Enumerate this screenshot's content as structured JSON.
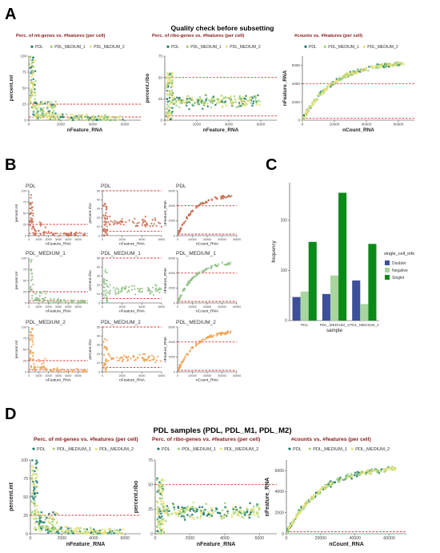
{
  "panels": {
    "A": {
      "letter": "A",
      "title": "Quality check before subsetting",
      "legend": [
        "PDL",
        "PDL_MEDIUM_1",
        "PDL_MEDIUM_2"
      ],
      "colors": {
        "PDL": "#1b7a6b",
        "PDL_MEDIUM_1": "#9fd27a",
        "PDL_MEDIUM_2": "#e8e37a"
      }
    },
    "B": {
      "letter": "B",
      "rows": [
        "PDL",
        "PDL_MEDIUM_1",
        "PDL_MEDIUM_2"
      ]
    },
    "C": {
      "letter": "C"
    },
    "D": {
      "letter": "D",
      "title": "PDL samples (PDL, PDL_M1, PDL_M2)",
      "legend": [
        "PDL",
        "PDL_MEDIUM_1",
        "PDL_MEDIUM_2"
      ]
    }
  },
  "chart_data": [
    {
      "id": "A1",
      "type": "scatter",
      "title": "Perc. of mt-genes vs. #features (per cell)",
      "xlabel": "nFeature_RNA",
      "ylabel": "percent.mt",
      "xlim": [
        0,
        7000
      ],
      "ylim": [
        0,
        100
      ],
      "xticks": [
        0,
        2000,
        4000,
        6000
      ],
      "yticks": [
        0,
        25,
        50,
        75,
        100
      ],
      "hlines": [
        5,
        25
      ]
    },
    {
      "id": "A2",
      "type": "scatter",
      "title": "Perc. of ribo-genes vs. #features (per cell)",
      "xlabel": "nFeature_RNA",
      "ylabel": "percent.ribo",
      "xlim": [
        0,
        7000
      ],
      "ylim": [
        0,
        75
      ],
      "xticks": [
        0,
        2000,
        4000,
        6000
      ],
      "yticks": [
        0,
        25,
        50,
        75
      ],
      "hlines": [
        5,
        50
      ]
    },
    {
      "id": "A3",
      "type": "scatter",
      "title": "#counts vs. #features (per cell)",
      "xlabel": "nCount_RNA",
      "ylabel": "nFeature_RNA",
      "xlim": [
        0,
        70000
      ],
      "ylim": [
        0,
        7000
      ],
      "xticks": [
        0,
        20000,
        40000,
        60000
      ],
      "yticks": [
        0,
        2000,
        4000,
        6000
      ],
      "hlines": [
        200,
        4000
      ]
    },
    {
      "id": "C",
      "type": "bar",
      "categories": [
        "PDL",
        "PDL_MEDIUM_1",
        "PDL_MEDIUM_2"
      ],
      "series": [
        {
          "name": "Doublet",
          "color": "#3d4f9a",
          "values": [
            47,
            53,
            80
          ]
        },
        {
          "name": "Negative",
          "color": "#a8d5a0",
          "values": [
            58,
            90,
            33
          ]
        },
        {
          "name": "Singlet",
          "color": "#0b8a1a",
          "values": [
            157,
            255,
            153
          ]
        }
      ],
      "xlabel": "sample",
      "ylabel": "frequency",
      "ylim": [
        0,
        275
      ],
      "yticks": [
        0,
        100,
        200
      ],
      "legend_title": "single_cell_info"
    },
    {
      "id": "D1",
      "type": "scatter",
      "title": "Perc. of mt-genes vs. #features (per cell)",
      "xlabel": "nFeature_RNA",
      "ylabel": "percent.mt",
      "xlim": [
        0,
        7000
      ],
      "ylim": [
        0,
        100
      ],
      "xticks": [
        0,
        2000,
        4000,
        6000
      ],
      "yticks": [
        0,
        25,
        50,
        75,
        100
      ],
      "hlines": [
        25
      ]
    },
    {
      "id": "D2",
      "type": "scatter",
      "title": "Perc. of ribo-genes vs. #features (per cell)",
      "xlabel": "nFeature_RNA",
      "ylabel": "percent.ribo",
      "xlim": [
        0,
        7000
      ],
      "ylim": [
        0,
        75
      ],
      "xticks": [
        0,
        2000,
        4000,
        6000
      ],
      "yticks": [
        0,
        25,
        50,
        75
      ],
      "hlines": [
        50
      ]
    },
    {
      "id": "D3",
      "type": "scatter",
      "title": "#counts vs. #features (per cell)",
      "xlabel": "nCount_RNA",
      "ylabel": "nFeature_RNA",
      "xlim": [
        0,
        70000
      ],
      "ylim": [
        0,
        7000
      ],
      "xticks": [
        0,
        20000,
        40000,
        60000
      ],
      "yticks": [
        0,
        2000,
        4000,
        6000
      ],
      "hlines": [
        200
      ]
    },
    {
      "id": "B",
      "type": "scatter",
      "row_labels": [
        "PDL",
        "PDL_MEDIUM_1",
        "PDL_MEDIUM_2"
      ],
      "colors": {
        "PDL": "#c86a4e",
        "PDL_MEDIUM_1": "#8fbf85",
        "PDL_MEDIUM_2": "#f0a050"
      },
      "columns": [
        {
          "xlabel": "nFeature_RNA",
          "ylabel": "percent.mt",
          "xlim": [
            0,
            6000
          ],
          "ylim": [
            0,
            100
          ],
          "xticks": [
            0,
            1000,
            2000,
            3000,
            4000,
            5000
          ],
          "yticks": [
            0,
            25,
            50,
            75,
            100
          ],
          "hlines": [
            5,
            25
          ]
        },
        {
          "xlabel": "nFeature_RNA",
          "ylabel": "percent.ribo",
          "xlim": [
            0,
            6000
          ],
          "ylim": [
            0,
            50
          ],
          "xticks": [
            0,
            2000,
            4000,
            6000
          ],
          "yticks": [
            0,
            10,
            20,
            30,
            40,
            50
          ],
          "hlines": [
            5,
            50
          ]
        },
        {
          "xlabel": "nCount_RNA",
          "ylabel": "nFeature_RNA",
          "xlim": [
            0,
            40000
          ],
          "ylim": [
            0,
            6000
          ],
          "xticks": [
            0,
            10000,
            20000,
            30000,
            40000
          ],
          "yticks": [
            0,
            2000,
            4000,
            6000
          ],
          "hlines": [
            200,
            4000
          ]
        }
      ]
    }
  ]
}
